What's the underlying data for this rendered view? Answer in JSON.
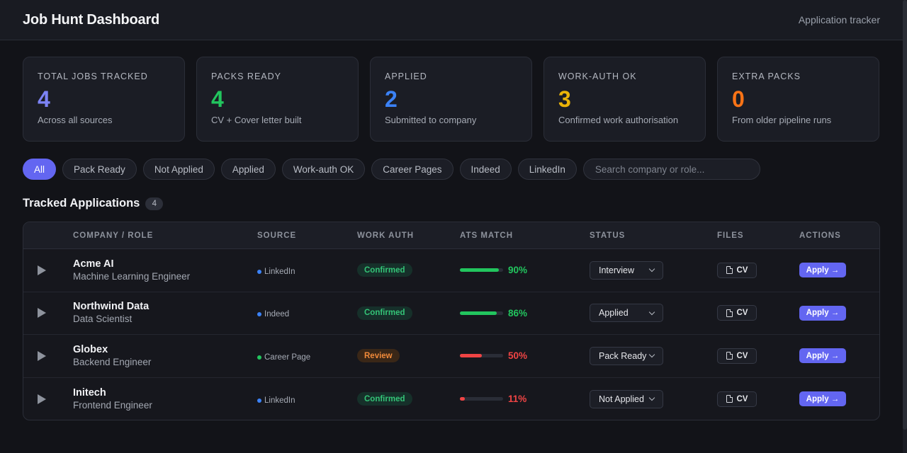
{
  "header": {
    "title": "Job Hunt Dashboard",
    "subtitle": "Application tracker"
  },
  "stats": [
    {
      "label": "Total Jobs Tracked",
      "value": "4",
      "desc": "Across all sources",
      "color": "#7c83f5"
    },
    {
      "label": "Packs Ready",
      "value": "4",
      "desc": "CV + Cover letter built",
      "color": "#22c55e"
    },
    {
      "label": "Applied",
      "value": "2",
      "desc": "Submitted to company",
      "color": "#3b82f6"
    },
    {
      "label": "Work-auth OK",
      "value": "3",
      "desc": "Confirmed work authorisation",
      "color": "#eab308"
    },
    {
      "label": "Extra Packs",
      "value": "0",
      "desc": "From older pipeline runs",
      "color": "#f97316"
    }
  ],
  "filters": {
    "chips": [
      "All",
      "Pack Ready",
      "Not Applied",
      "Applied",
      "Work-auth OK",
      "Career Pages",
      "Indeed",
      "LinkedIn"
    ],
    "active": "All",
    "search_placeholder": "Search company or role...",
    "search_value": ""
  },
  "section": {
    "title": "Tracked Applications",
    "count": "4"
  },
  "table": {
    "columns": {
      "company": "COMPANY / ROLE",
      "source": "SOURCE",
      "auth": "WORK AUTH",
      "ats": "ATS MATCH",
      "status": "STATUS",
      "files": "FILES",
      "actions": "ACTIONS"
    },
    "rows": [
      {
        "company": "Acme AI",
        "role": "Machine Learning Engineer",
        "source": "LinkedIn",
        "source_color": "#3b82f6",
        "auth": "Confirmed",
        "auth_type": "ok",
        "ats": 90,
        "ats_label": "90%",
        "ats_color": "#22c55e",
        "status": "Interview",
        "file": "CV",
        "action": "Apply →"
      },
      {
        "company": "Northwind Data",
        "role": "Data Scientist",
        "source": "Indeed",
        "source_color": "#3b82f6",
        "auth": "Confirmed",
        "auth_type": "ok",
        "ats": 86,
        "ats_label": "86%",
        "ats_color": "#22c55e",
        "status": "Applied",
        "file": "CV",
        "action": "Apply →"
      },
      {
        "company": "Globex",
        "role": "Backend Engineer",
        "source": "Career Page",
        "source_color": "#22c55e",
        "auth": "Review",
        "auth_type": "review",
        "ats": 50,
        "ats_label": "50%",
        "ats_color": "#ef4444",
        "status": "Pack Ready",
        "file": "CV",
        "action": "Apply →"
      },
      {
        "company": "Initech",
        "role": "Frontend Engineer",
        "source": "LinkedIn",
        "source_color": "#3b82f6",
        "auth": "Confirmed",
        "auth_type": "ok",
        "ats": 11,
        "ats_label": "11%",
        "ats_color": "#ef4444",
        "status": "Not Applied",
        "file": "CV",
        "action": "Apply →"
      }
    ]
  }
}
